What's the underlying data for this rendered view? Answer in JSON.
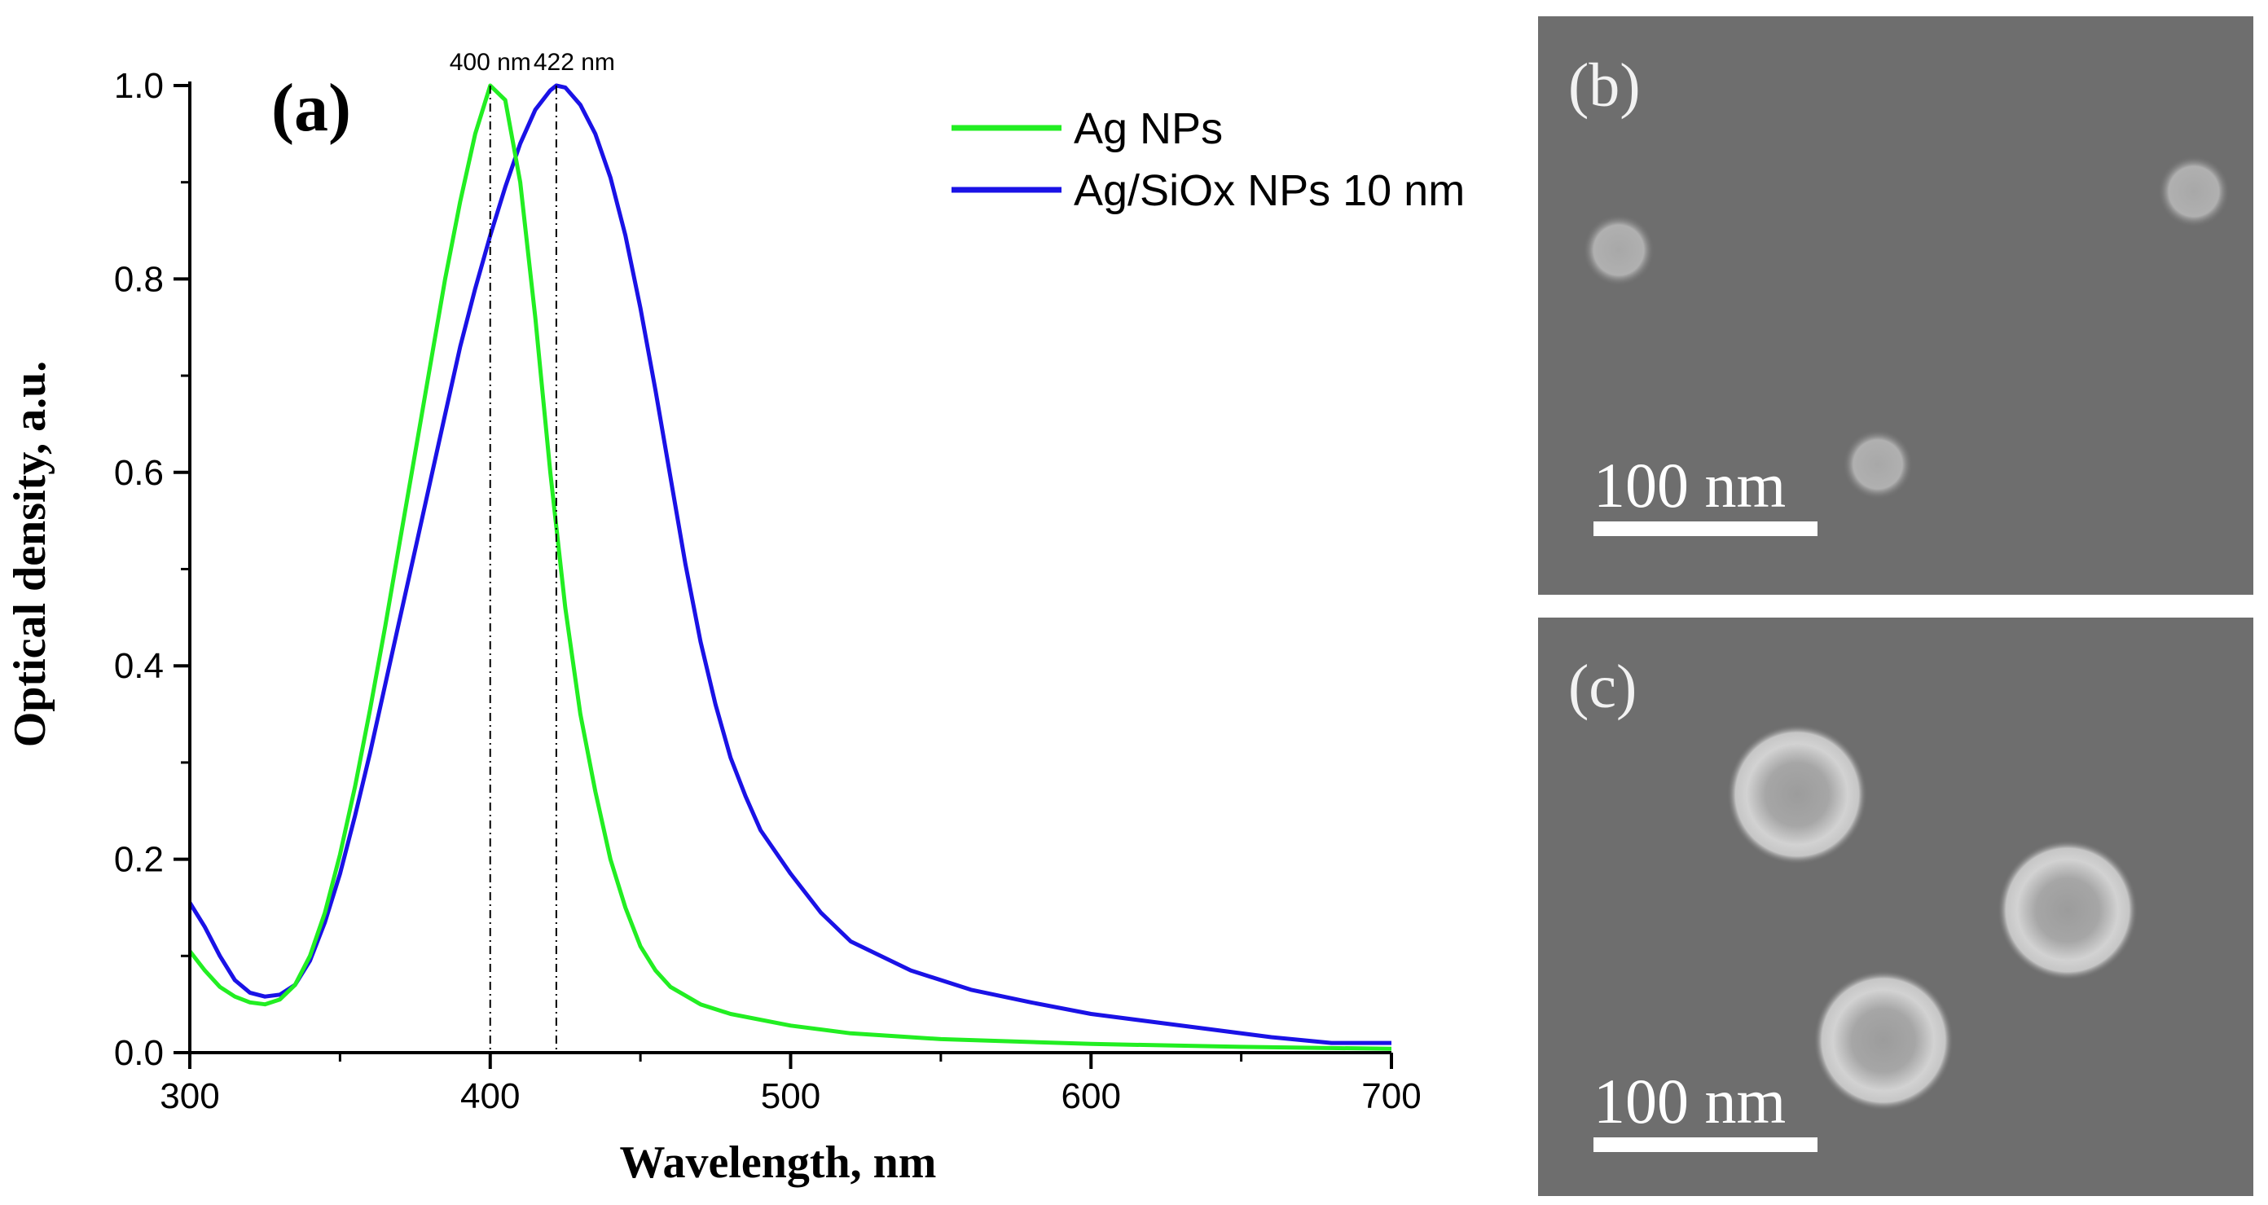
{
  "chart_data": {
    "type": "line",
    "panel_label": "(a)",
    "xlabel": "Wavelength, nm",
    "ylabel": "Optical density, a.u.",
    "xlim": [
      300,
      700
    ],
    "ylim": [
      0,
      1.0
    ],
    "xticks": [
      "300",
      "400",
      "500",
      "600",
      "700"
    ],
    "yticks": [
      "0.0",
      "0.2",
      "0.4",
      "0.6",
      "0.8",
      "1.0"
    ],
    "annotations": [
      {
        "text": "400 nm",
        "x": 400
      },
      {
        "text": "422 nm",
        "x": 422
      }
    ],
    "legend_position": "top-right",
    "series": [
      {
        "name": "Ag NPs",
        "color": "#22ee22",
        "points": [
          [
            300,
            0.105
          ],
          [
            305,
            0.085
          ],
          [
            310,
            0.068
          ],
          [
            315,
            0.058
          ],
          [
            320,
            0.052
          ],
          [
            325,
            0.05
          ],
          [
            330,
            0.055
          ],
          [
            335,
            0.07
          ],
          [
            340,
            0.1
          ],
          [
            345,
            0.145
          ],
          [
            350,
            0.205
          ],
          [
            355,
            0.275
          ],
          [
            360,
            0.355
          ],
          [
            365,
            0.44
          ],
          [
            370,
            0.53
          ],
          [
            375,
            0.62
          ],
          [
            380,
            0.71
          ],
          [
            385,
            0.8
          ],
          [
            390,
            0.88
          ],
          [
            395,
            0.95
          ],
          [
            400,
            1.0
          ],
          [
            405,
            0.985
          ],
          [
            410,
            0.9
          ],
          [
            415,
            0.76
          ],
          [
            420,
            0.6
          ],
          [
            425,
            0.46
          ],
          [
            430,
            0.35
          ],
          [
            435,
            0.27
          ],
          [
            440,
            0.2
          ],
          [
            445,
            0.15
          ],
          [
            450,
            0.11
          ],
          [
            455,
            0.085
          ],
          [
            460,
            0.068
          ],
          [
            470,
            0.05
          ],
          [
            480,
            0.04
          ],
          [
            500,
            0.028
          ],
          [
            520,
            0.02
          ],
          [
            550,
            0.014
          ],
          [
            600,
            0.009
          ],
          [
            650,
            0.006
          ],
          [
            700,
            0.004
          ]
        ]
      },
      {
        "name": "Ag/SiOx NPs 10 nm",
        "color": "#1a12e6",
        "points": [
          [
            300,
            0.155
          ],
          [
            305,
            0.13
          ],
          [
            310,
            0.1
          ],
          [
            315,
            0.075
          ],
          [
            320,
            0.062
          ],
          [
            325,
            0.058
          ],
          [
            330,
            0.06
          ],
          [
            335,
            0.07
          ],
          [
            340,
            0.095
          ],
          [
            345,
            0.135
          ],
          [
            350,
            0.185
          ],
          [
            355,
            0.245
          ],
          [
            360,
            0.31
          ],
          [
            365,
            0.38
          ],
          [
            370,
            0.45
          ],
          [
            375,
            0.52
          ],
          [
            380,
            0.59
          ],
          [
            385,
            0.66
          ],
          [
            390,
            0.73
          ],
          [
            395,
            0.79
          ],
          [
            400,
            0.845
          ],
          [
            405,
            0.895
          ],
          [
            410,
            0.94
          ],
          [
            415,
            0.975
          ],
          [
            420,
            0.995
          ],
          [
            422,
            1.0
          ],
          [
            425,
            0.998
          ],
          [
            430,
            0.98
          ],
          [
            435,
            0.95
          ],
          [
            440,
            0.905
          ],
          [
            445,
            0.845
          ],
          [
            450,
            0.77
          ],
          [
            455,
            0.685
          ],
          [
            460,
            0.595
          ],
          [
            465,
            0.505
          ],
          [
            470,
            0.425
          ],
          [
            475,
            0.36
          ],
          [
            480,
            0.305
          ],
          [
            485,
            0.265
          ],
          [
            490,
            0.23
          ],
          [
            500,
            0.185
          ],
          [
            510,
            0.145
          ],
          [
            520,
            0.115
          ],
          [
            540,
            0.085
          ],
          [
            560,
            0.065
          ],
          [
            580,
            0.052
          ],
          [
            600,
            0.04
          ],
          [
            620,
            0.032
          ],
          [
            640,
            0.024
          ],
          [
            660,
            0.016
          ],
          [
            680,
            0.01
          ],
          [
            700,
            0.01
          ]
        ]
      }
    ]
  },
  "panels": {
    "b": {
      "label": "(b)",
      "scale_bar": "100 nm"
    },
    "c": {
      "label": "(c)",
      "scale_bar": "100 nm"
    }
  },
  "colors": {
    "sem_background": "#6e6e6e",
    "particle": "#b3b3b3"
  }
}
